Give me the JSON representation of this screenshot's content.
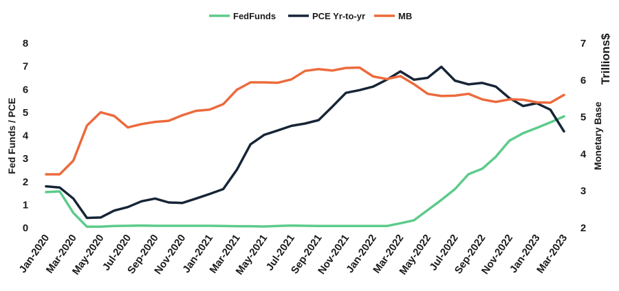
{
  "chart_data": {
    "type": "line",
    "title": "",
    "x": [
      "Jan-2020",
      "Feb-2020",
      "Mar-2020",
      "Apr-2020",
      "May-2020",
      "Jun-2020",
      "Jul-2020",
      "Aug-2020",
      "Sep-2020",
      "Oct-2020",
      "Nov-2020",
      "Dec-2020",
      "Jan-2021",
      "Feb-2021",
      "Mar-2021",
      "Apr-2021",
      "May-2021",
      "Jun-2021",
      "Jul-2021",
      "Aug-2021",
      "Sep-2021",
      "Oct-2021",
      "Nov-2021",
      "Dec-2021",
      "Jan-2022",
      "Feb-2022",
      "Mar-2022",
      "Apr-2022",
      "May-2022",
      "Jun-2022",
      "Jul-2022",
      "Aug-2022",
      "Sep-2022",
      "Oct-2022",
      "Nov-2022",
      "Dec-2022",
      "Jan-2023",
      "Feb-2023",
      "Mar-2023"
    ],
    "x_tick_labels": [
      "Jan-2020",
      "Mar-2020",
      "May-2020",
      "Jul-2020",
      "Sep-2020",
      "Nov-2020",
      "Jan-2021",
      "Mar-2021",
      "May-2021",
      "Jul-2021",
      "Sep-2021",
      "Nov-2021",
      "Jan-2022",
      "Mar-2022",
      "May-2022",
      "Jul-2022",
      "Sep-2022",
      "Nov-2022",
      "Jan-2023",
      "Mar-2023"
    ],
    "ylabel": "Fed Funds / PCE",
    "ylim": [
      0,
      8
    ],
    "y_ticks": [
      "0",
      "1",
      "2",
      "3",
      "4",
      "5",
      "6",
      "7",
      "8"
    ],
    "y2label": "Monetary Base",
    "y2unit_label": "Trillions$",
    "y2lim": [
      2,
      7
    ],
    "y2_ticks": [
      "2",
      "3",
      "4",
      "5",
      "6",
      "7"
    ],
    "legend_position": "top-center",
    "grid": false,
    "series": [
      {
        "name": "FedFunds",
        "axis": "left",
        "color": "#5ccb8a",
        "values": [
          1.55,
          1.58,
          0.65,
          0.05,
          0.05,
          0.08,
          0.09,
          0.1,
          0.09,
          0.09,
          0.09,
          0.09,
          0.09,
          0.08,
          0.07,
          0.07,
          0.06,
          0.08,
          0.1,
          0.09,
          0.08,
          0.08,
          0.08,
          0.08,
          0.08,
          0.08,
          0.2,
          0.33,
          0.77,
          1.21,
          1.68,
          2.33,
          2.56,
          3.08,
          3.78,
          4.1,
          4.33,
          4.57,
          4.83
        ]
      },
      {
        "name": "PCE Yr-to-yr",
        "axis": "left",
        "color": "#162536",
        "values": [
          1.8,
          1.75,
          1.27,
          0.43,
          0.45,
          0.75,
          0.9,
          1.15,
          1.27,
          1.1,
          1.08,
          1.27,
          1.47,
          1.68,
          2.52,
          3.62,
          4.03,
          4.22,
          4.42,
          4.52,
          4.67,
          5.25,
          5.85,
          5.97,
          6.12,
          6.42,
          6.78,
          6.42,
          6.5,
          6.98,
          6.38,
          6.22,
          6.28,
          6.12,
          5.62,
          5.28,
          5.4,
          5.12,
          4.18
        ]
      },
      {
        "name": "MB",
        "axis": "right",
        "color": "#ec6a3c",
        "values": [
          3.45,
          3.45,
          3.82,
          4.77,
          5.13,
          5.03,
          4.72,
          4.81,
          4.87,
          4.9,
          5.05,
          5.17,
          5.2,
          5.35,
          5.74,
          5.94,
          5.94,
          5.93,
          6.02,
          6.25,
          6.3,
          6.26,
          6.33,
          6.34,
          6.1,
          6.03,
          6.11,
          5.89,
          5.63,
          5.57,
          5.58,
          5.63,
          5.48,
          5.41,
          5.48,
          5.47,
          5.4,
          5.39,
          5.6
        ]
      }
    ]
  }
}
